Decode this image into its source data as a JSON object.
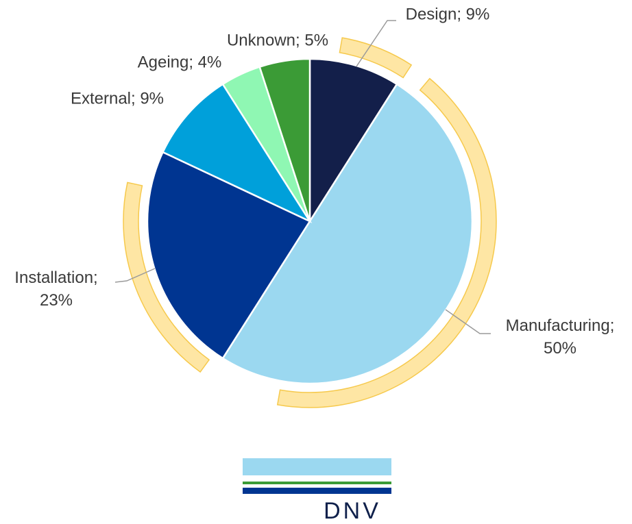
{
  "chart_data": {
    "type": "pie",
    "values": [
      9,
      50,
      23,
      9,
      4,
      5
    ],
    "value_labels": [
      "Design; 9%",
      "Manufacturing;\n50%",
      "Installation;\n23%",
      "External; 9%",
      "Ageing; 4%",
      "Unknown; 5%"
    ],
    "colors": [
      "#131f4a",
      "#9bd8f0",
      "#003591",
      "#00a0da",
      "#8ff7b3",
      "#3b9b36"
    ]
  },
  "logo": {
    "text": "DNV"
  }
}
